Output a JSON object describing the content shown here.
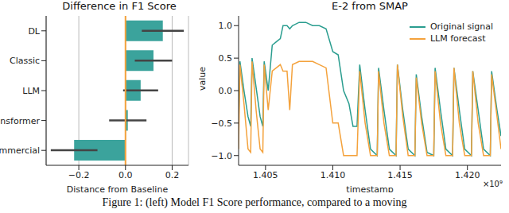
{
  "caption": "Figure 1: (left) Model F1 Score performance, compared to a moving",
  "chart_data": [
    {
      "type": "bar",
      "title": "Difference in F1 Score",
      "orientation": "horizontal",
      "categories": [
        "DL",
        "Classic",
        "LLM",
        "Transformer",
        "Commercial"
      ],
      "values": [
        0.16,
        0.12,
        0.065,
        0.01,
        -0.22
      ],
      "errors": [
        0.09,
        0.08,
        0.075,
        0.08,
        0.1
      ],
      "baseline": 0,
      "color": "#3ba39c",
      "xlabel": "Distance from Baseline",
      "xlim": [
        -0.34,
        0.27
      ],
      "xticks": [
        {
          "value": -0.2,
          "label": "−0.2"
        },
        {
          "value": 0,
          "label": "0.0"
        },
        0.2
      ],
      "grid": true
    },
    {
      "type": "line",
      "title": "E-2 from SMAP",
      "xlabel": "timestamp",
      "ylabel": "value",
      "annotation": "×10⁹",
      "x": [
        1.403,
        1.4031,
        1.4034,
        1.4037,
        1.4039,
        1.404,
        1.4043,
        1.4046,
        1.4048,
        1.4049,
        1.4052,
        1.4055,
        1.4058,
        1.4061,
        1.4063,
        1.4066,
        1.4068,
        1.407,
        1.4075,
        1.408,
        1.4085,
        1.409,
        1.4095,
        1.41,
        1.4104,
        1.4108,
        1.4112,
        1.4115,
        1.4118,
        1.412,
        1.4124,
        1.4128,
        1.4133,
        1.4134,
        1.4138,
        1.4142,
        1.4147,
        1.4148,
        1.4152,
        1.4156,
        1.4161,
        1.4162,
        1.4166,
        1.417,
        1.4175,
        1.4176,
        1.418,
        1.4184,
        1.4189,
        1.419,
        1.4194,
        1.4198,
        1.4203,
        1.4204,
        1.4208,
        1.4212,
        1.4217,
        1.4218,
        1.4222,
        1.4225
      ],
      "series": [
        {
          "name": "Original signal",
          "color": "#2a9d8f",
          "values": [
            -0.5,
            0.45,
            0.0,
            -0.4,
            -0.55,
            0.5,
            0.05,
            -0.4,
            -0.55,
            0.45,
            0.0,
            0.7,
            0.75,
            0.8,
            1.0,
            1.0,
            0.95,
            1.0,
            1.05,
            1.05,
            1.0,
            1.0,
            0.95,
            0.6,
            0.55,
            0.0,
            -0.2,
            -0.55,
            -0.55,
            0.4,
            -0.3,
            -0.9,
            -1.0,
            0.35,
            -0.3,
            -0.9,
            -1.0,
            0.4,
            -0.3,
            -0.9,
            -1.0,
            0.25,
            -0.4,
            -0.95,
            -1.0,
            0.35,
            -0.3,
            -0.9,
            -1.0,
            0.35,
            -0.3,
            -0.9,
            -1.0,
            0.3,
            -0.3,
            -0.9,
            -1.0,
            0.3,
            -0.3,
            -0.7
          ]
        },
        {
          "name": "LLM forecast",
          "color": "#f4a23c",
          "values": [
            -0.9,
            0.4,
            -0.2,
            -0.9,
            -0.95,
            0.45,
            -0.3,
            -0.9,
            -0.95,
            0.4,
            -0.3,
            0.3,
            0.35,
            0.4,
            0.3,
            0.3,
            -0.3,
            0.4,
            0.45,
            0.45,
            0.45,
            0.4,
            0.35,
            -0.5,
            -0.5,
            -1.0,
            -1.0,
            -1.0,
            -1.0,
            0.3,
            -0.5,
            -1.0,
            -1.0,
            0.3,
            -0.5,
            -1.0,
            -1.0,
            0.4,
            -0.4,
            -1.0,
            -1.0,
            0.2,
            -0.5,
            -1.0,
            -1.0,
            0.3,
            -0.5,
            -1.0,
            -1.0,
            0.35,
            -0.5,
            -1.0,
            -1.0,
            0.3,
            -0.5,
            -1.0,
            -1.0,
            0.25,
            -0.4,
            -0.9
          ]
        }
      ],
      "xlim": [
        1.403,
        1.4225
      ],
      "xticks": [
        1.405,
        {
          "value": 1.41,
          "label": "1.410"
        },
        1.415,
        {
          "value": 1.42,
          "label": "1.420"
        }
      ],
      "ylim": [
        -1.15,
        1.15
      ],
      "yticks": [
        {
          "value": -1,
          "label": "−1.0"
        },
        {
          "value": -0.5,
          "label": "−0.5"
        },
        {
          "value": 0,
          "label": "0.0"
        },
        0.5,
        {
          "value": 1,
          "label": "1.0"
        }
      ],
      "grid": false,
      "legend": "upper right"
    }
  ]
}
